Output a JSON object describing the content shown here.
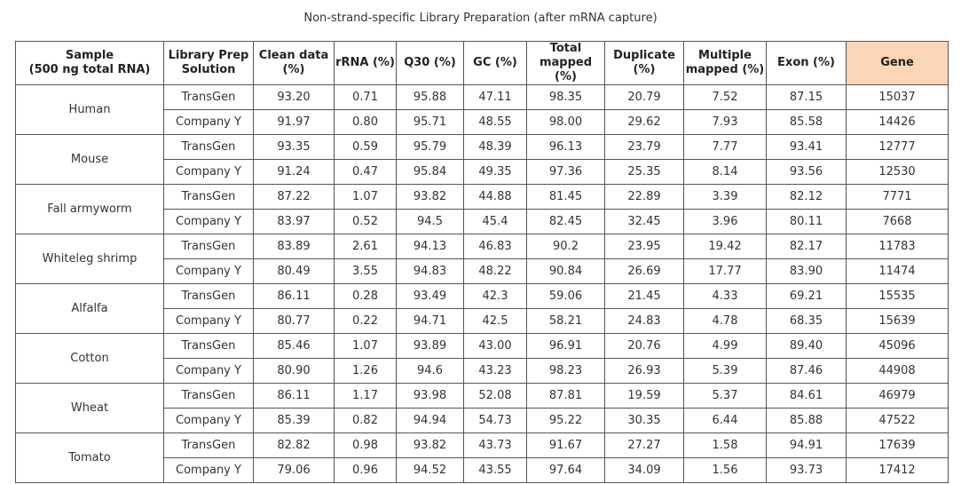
{
  "title": "Non-strand-specific Library Preparation (after mRNA capture)",
  "headers": {
    "sample_line1": "Sample",
    "sample_line2": "(500 ng total RNA)",
    "lib_line1": "Library Prep",
    "lib_line2": "Solution",
    "clean_line1": "Clean data",
    "clean_line2": "(%)",
    "rrna": "rRNA (%)",
    "q30": "Q30 (%)",
    "gc": "GC (%)",
    "total_line1": "Total",
    "total_line2": "mapped (%)",
    "dup_line1": "Duplicate",
    "dup_line2": "(%)",
    "multi_line1": "Multiple",
    "multi_line2": "mapped (%)",
    "exon": "Exon (%)",
    "gene": "Gene"
  },
  "highlight_color": "#d9323a",
  "gene_header_bg": "#fbd5b6",
  "samples": [
    {
      "name": "Human",
      "rows": [
        {
          "solution": "TransGen",
          "clean": "93.20",
          "rrna": "0.71",
          "q30": "95.88",
          "gc": "47.11",
          "total": "98.35",
          "dup": "20.79",
          "multi": "7.52",
          "exon": "87.15",
          "gene": "15037"
        },
        {
          "solution": "Company Y",
          "clean": "91.97",
          "rrna": "0.80",
          "q30": "95.71",
          "gc": "48.55",
          "total": "98.00",
          "dup": "29.62",
          "multi": "7.93",
          "exon": "85.58",
          "gene": "14426"
        }
      ]
    },
    {
      "name": "Mouse",
      "rows": [
        {
          "solution": "TransGen",
          "clean": "93.35",
          "rrna": "0.59",
          "q30": "95.79",
          "gc": "48.39",
          "total": "96.13",
          "dup": "23.79",
          "multi": "7.77",
          "exon": "93.41",
          "gene": "12777"
        },
        {
          "solution": "Company Y",
          "clean": "91.24",
          "rrna": "0.47",
          "q30": "95.84",
          "gc": "49.35",
          "total": "97.36",
          "dup": "25.35",
          "multi": "8.14",
          "exon": "93.56",
          "gene": "12530"
        }
      ]
    },
    {
      "name": "Fall armyworm",
      "rows": [
        {
          "solution": "TransGen",
          "clean": "87.22",
          "rrna": "1.07",
          "q30": "93.82",
          "gc": "44.88",
          "total": "81.45",
          "dup": "22.89",
          "multi": "3.39",
          "exon": "82.12",
          "gene": "7771"
        },
        {
          "solution": "Company Y",
          "clean": "83.97",
          "rrna": "0.52",
          "q30": "94.5",
          "gc": "45.4",
          "total": "82.45",
          "dup": "32.45",
          "multi": "3.96",
          "exon": "80.11",
          "gene": "7668"
        }
      ]
    },
    {
      "name": "Whiteleg shrimp",
      "rows": [
        {
          "solution": "TransGen",
          "clean": "83.89",
          "rrna": "2.61",
          "q30": "94.13",
          "gc": "46.83",
          "total": "90.2",
          "dup": "23.95",
          "multi": "19.42",
          "exon": "82.17",
          "gene": "11783"
        },
        {
          "solution": "Company Y",
          "clean": "80.49",
          "rrna": "3.55",
          "q30": "94.83",
          "gc": "48.22",
          "total": "90.84",
          "dup": "26.69",
          "multi": "17.77",
          "exon": "83.90",
          "gene": "11474"
        }
      ]
    },
    {
      "name": "Alfalfa",
      "rows": [
        {
          "solution": "TransGen",
          "clean": "86.11",
          "rrna": "0.28",
          "q30": "93.49",
          "gc": "42.3",
          "total": "59.06",
          "dup": "21.45",
          "multi": "4.33",
          "exon": "69.21",
          "gene": "15535"
        },
        {
          "solution": "Company Y",
          "clean": "80.77",
          "rrna": "0.22",
          "q30": "94.71",
          "gc": "42.5",
          "total": "58.21",
          "dup": "24.83",
          "multi": "4.78",
          "exon": "68.35",
          "gene": "15639"
        }
      ]
    },
    {
      "name": "Cotton",
      "rows": [
        {
          "solution": "TransGen",
          "clean": "85.46",
          "rrna": "1.07",
          "q30": "93.89",
          "gc": "43.00",
          "total": "96.91",
          "dup": "20.76",
          "multi": "4.99",
          "exon": "89.40",
          "gene": "45096"
        },
        {
          "solution": "Company Y",
          "clean": "80.90",
          "rrna": "1.26",
          "q30": "94.6",
          "gc": "43.23",
          "total": "98.23",
          "dup": "26.93",
          "multi": "5.39",
          "exon": "87.46",
          "gene": "44908"
        }
      ]
    },
    {
      "name": "Wheat",
      "rows": [
        {
          "solution": "TransGen",
          "clean": "86.11",
          "rrna": "1.17",
          "q30": "93.98",
          "gc": "52.08",
          "total": "87.81",
          "dup": "19.59",
          "multi": "5.37",
          "exon": "84.61",
          "gene": "46979"
        },
        {
          "solution": "Company Y",
          "clean": "85.39",
          "rrna": "0.82",
          "q30": "94.94",
          "gc": "54.73",
          "total": "95.22",
          "dup": "30.35",
          "multi": "6.44",
          "exon": "85.88",
          "gene": "47522"
        }
      ]
    },
    {
      "name": "Tomato",
      "rows": [
        {
          "solution": "TransGen",
          "clean": "82.82",
          "rrna": "0.98",
          "q30": "93.82",
          "gc": "43.73",
          "total": "91.67",
          "dup": "27.27",
          "multi": "1.58",
          "exon": "94.91",
          "gene": "17639"
        },
        {
          "solution": "Company Y",
          "clean": "79.06",
          "rrna": "0.96",
          "q30": "94.52",
          "gc": "43.55",
          "total": "97.64",
          "dup": "34.09",
          "multi": "1.56",
          "exon": "93.73",
          "gene": "17412"
        }
      ]
    }
  ]
}
